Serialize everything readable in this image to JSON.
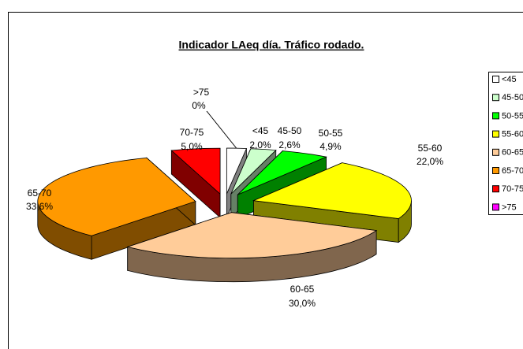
{
  "chart_data": {
    "type": "pie3d",
    "title": "Indicador LAeq día. Tráfico rodado.",
    "categories": [
      "<45",
      "45-50",
      "50-55",
      "55-60",
      "60-65",
      "65-70",
      "70-75",
      ">75"
    ],
    "values": [
      2.0,
      2.6,
      4.9,
      22.0,
      30.0,
      33.6,
      5.0,
      0
    ],
    "value_labels": [
      "2,0%",
      "2,6%",
      "4,9%",
      "22,0%",
      "30,0%",
      "33,6%",
      "5,0%",
      "0%"
    ],
    "colors": [
      "#ffffff",
      "#ccffcc",
      "#00ff00",
      "#ffff00",
      "#ffcc99",
      "#ff9900",
      "#ff0000",
      "#ff00ff"
    ],
    "legend": "right"
  }
}
